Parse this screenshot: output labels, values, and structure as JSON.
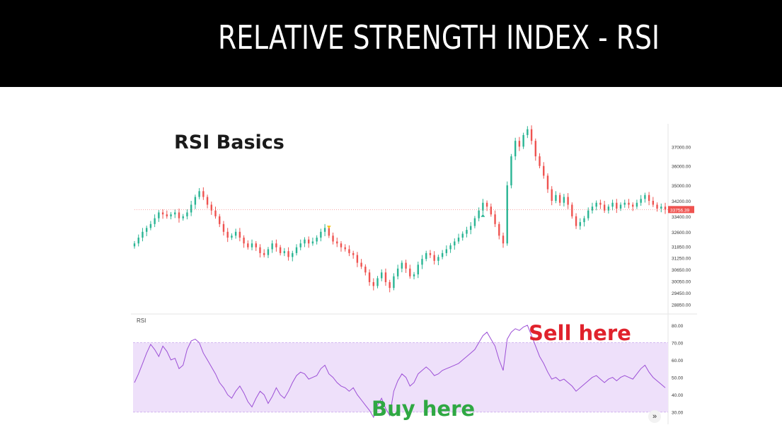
{
  "header": {
    "title": "RELATIVE STRENGTH INDEX - RSI"
  },
  "chart_data": [
    {
      "type": "candlestick",
      "subtitle": "RSI Basics",
      "ylim": [
        28500,
        38000
      ],
      "y_ticks": [
        37000,
        36000,
        35000,
        34200,
        33400,
        32600,
        31850,
        31250,
        30650,
        30050,
        29450,
        28850
      ],
      "y_tick_labels": [
        "37000.00",
        "36000.00",
        "35000.00",
        "34200.00",
        "33400.00",
        "32600.00",
        "31850.00",
        "31250.00",
        "30650.00",
        "30050.00",
        "29450.00",
        "28850.00"
      ],
      "last_price_label": "33756.39",
      "colors": {
        "up": "#2ab594",
        "down": "#ef5350",
        "price_tag": "#ef5350"
      },
      "closes": [
        32000,
        32300,
        32600,
        32800,
        33000,
        33300,
        33600,
        33500,
        33400,
        33500,
        33600,
        33300,
        33400,
        33600,
        34000,
        34400,
        34700,
        34400,
        34000,
        33700,
        33400,
        33000,
        32600,
        32300,
        32400,
        32600,
        32300,
        32000,
        31800,
        32000,
        31800,
        31500,
        31400,
        31700,
        32000,
        31800,
        31500,
        31600,
        31300,
        31500,
        31800,
        32000,
        32200,
        32000,
        32100,
        32300,
        32600,
        32800,
        32400,
        32100,
        32000,
        31800,
        31700,
        31500,
        31400,
        31000,
        30800,
        30500,
        30000,
        29800,
        30200,
        30500,
        30000,
        29700,
        30300,
        30700,
        31000,
        30700,
        30300,
        30400,
        30900,
        31200,
        31500,
        31400,
        31100,
        31300,
        31500,
        31700,
        31900,
        32100,
        32300,
        32500,
        32700,
        32900,
        33300,
        33700,
        34100,
        33900,
        33500,
        33000,
        32400,
        32000,
        35000,
        36500,
        37300,
        37000,
        37600,
        37900,
        37300,
        36500,
        36000,
        35500,
        34800,
        34200,
        34500,
        34100,
        34400,
        34000,
        33400,
        32900,
        33100,
        33300,
        33700,
        33900,
        34100,
        34000,
        33700,
        33900,
        34100,
        33800,
        34000,
        34100,
        34000,
        33900,
        34100,
        34300,
        34500,
        34200,
        34000,
        33800,
        33900,
        33750
      ],
      "markers": [
        {
          "index": 48,
          "shape": "triangle-down",
          "color": "#f5c518"
        },
        {
          "index": 86,
          "shape": "triangle-up",
          "color": "#2ab594"
        }
      ]
    },
    {
      "type": "line",
      "label": "RSI",
      "ylim": [
        25,
        82
      ],
      "y_ticks": [
        80,
        70,
        60,
        50,
        40,
        30
      ],
      "y_tick_labels": [
        "80.00",
        "70.00",
        "60.00",
        "50.00",
        "40.00",
        "30.00"
      ],
      "band": {
        "from": 30,
        "to": 70,
        "fill": "#eee0fa",
        "line": "#c9a6ec"
      },
      "line_color": "#9c4fd6",
      "values": [
        47,
        52,
        58,
        64,
        69,
        66,
        62,
        68,
        65,
        60,
        61,
        55,
        57,
        66,
        71,
        72,
        70,
        64,
        60,
        56,
        52,
        47,
        44,
        40,
        38,
        42,
        45,
        41,
        36,
        33,
        38,
        42,
        40,
        35,
        39,
        44,
        40,
        38,
        42,
        47,
        51,
        53,
        52,
        49,
        50,
        51,
        55,
        57,
        52,
        50,
        47,
        45,
        44,
        42,
        44,
        40,
        37,
        34,
        31,
        27,
        34,
        38,
        32,
        28,
        42,
        48,
        52,
        50,
        45,
        47,
        52,
        54,
        56,
        54,
        51,
        52,
        54,
        55,
        56,
        57,
        58,
        60,
        62,
        64,
        66,
        70,
        74,
        76,
        72,
        68,
        60,
        54,
        72,
        76,
        78,
        77,
        79,
        80,
        74,
        68,
        62,
        58,
        53,
        49,
        50,
        48,
        49,
        47,
        45,
        42,
        44,
        46,
        48,
        50,
        51,
        49,
        47,
        49,
        50,
        48,
        50,
        51,
        50,
        49,
        52,
        55,
        57,
        53,
        50,
        48,
        46,
        44
      ]
    }
  ],
  "annotations": {
    "sell": "Sell here",
    "buy": "Buy here"
  },
  "ui": {
    "scroll_icon": "double-chevron-right-icon",
    "scroll_glyph": "»"
  }
}
